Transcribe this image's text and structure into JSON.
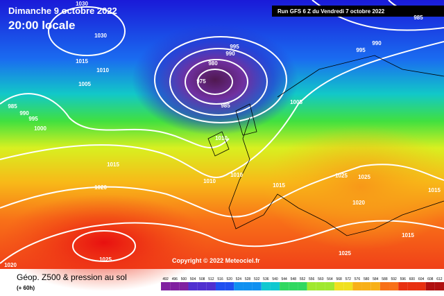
{
  "header": {
    "date": "Dimanche 9 octobre 2022",
    "time": "20:00 locale",
    "run": "Run GFS 6 Z du Vendredi 7 octobre 2022"
  },
  "isobar_labels": [
    "1030",
    "1030",
    "1015",
    "1010",
    "1005",
    "985",
    "990",
    "995",
    "1000",
    "995",
    "990",
    "980",
    "975",
    "985",
    "1005",
    "1010",
    "1015",
    "1010",
    "1010",
    "1015",
    "1020",
    "1025",
    "1025",
    "1020",
    "1015",
    "1015",
    "1025",
    "1020",
    "985",
    "990",
    "995",
    "1025"
  ],
  "copyright": "Copyright © 2022 Meteociel.fr",
  "footer": {
    "title": "Géop. Z500 & pression au sol",
    "lead": "(+ 60h)"
  },
  "legend": {
    "labels": [
      492,
      496,
      500,
      504,
      508,
      512,
      516,
      520,
      524,
      528,
      532,
      536,
      540,
      544,
      548,
      552,
      556,
      560,
      564,
      568,
      572,
      576,
      580,
      584,
      588,
      592,
      596,
      600,
      604,
      608,
      612
    ]
  }
}
